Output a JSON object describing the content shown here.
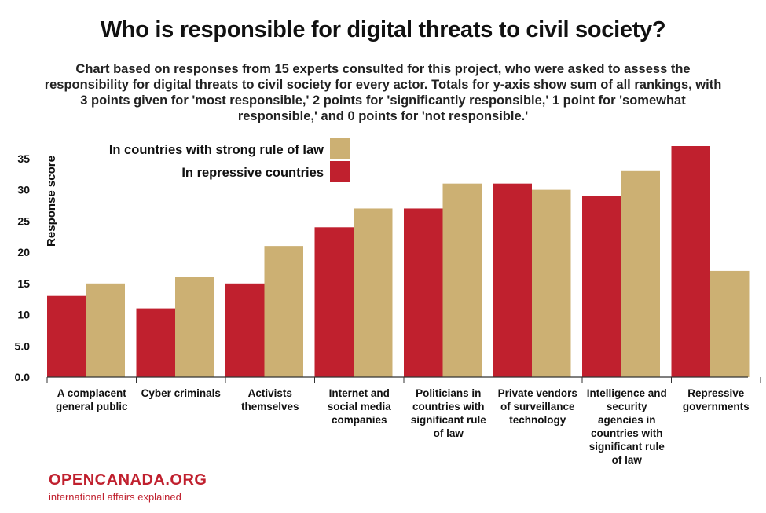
{
  "title": "Who is responsible for digital threats to civil society?",
  "subtitle": "Chart based on responses from 15 experts consulted for this project, who were asked to assess the responsibility for digital threats to civil society for every actor. Totals for y-axis show sum of all rankings, with 3 points given for 'most responsible,' 2 points for 'significantly responsible,' 1 point for 'somewhat responsible,' and 0 points for 'not responsible.'",
  "branding": {
    "logo": "OPENCANADA.ORG",
    "tagline": "international affairs explained"
  },
  "colors": {
    "repressive": "#c0202e",
    "strong_rule": "#ccb073"
  },
  "chart_data": {
    "type": "bar",
    "ylabel": "Response score",
    "xlabel": "",
    "ylim": [
      0,
      37
    ],
    "yticks": [
      "0.0",
      "5.0",
      "10",
      "15",
      "20",
      "25",
      "30",
      "35"
    ],
    "grid": false,
    "legend_position": "top-left",
    "categories": [
      "A complacent general public",
      "Cyber criminals",
      "Activists themselves",
      "Internet and social media companies",
      "Politicians in countries with significant rule of law",
      "Private vendors of surveillance technology",
      "Intelligence and security agencies in countries with significant rule of law",
      "Repressive governments"
    ],
    "series": [
      {
        "name": "In repressive countries",
        "color": "#c0202e",
        "values": [
          13,
          11,
          15,
          24,
          27,
          31,
          29,
          37
        ]
      },
      {
        "name": "In countries with strong rule of law",
        "color": "#ccb073",
        "values": [
          15,
          16,
          21,
          27,
          31,
          30,
          33,
          17
        ]
      }
    ]
  }
}
